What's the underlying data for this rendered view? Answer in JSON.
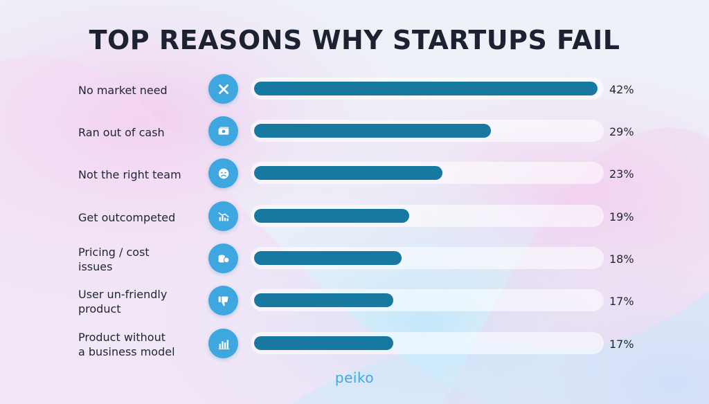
{
  "chart_data": {
    "type": "bar",
    "orientation": "horizontal",
    "title": "TOP REASONS WHY STARTUPS FAIL",
    "categories": [
      "No market need",
      "Ran out of cash",
      "Not the right team",
      "Get outcompeted",
      "Pricing / cost\nissues",
      "User un-friendly\nproduct",
      "Product without\na business model"
    ],
    "values": [
      42,
      29,
      23,
      19,
      18,
      17,
      17
    ],
    "value_labels": [
      "42%",
      "29%",
      "23%",
      "19%",
      "18%",
      "17%",
      "17%"
    ],
    "icons": [
      "close-icon",
      "cash-icon",
      "sad-face-icon",
      "declining-chart-icon",
      "coins-icon",
      "thumbs-down-icon",
      "bar-chart-icon"
    ],
    "xlim": [
      0,
      42
    ],
    "grid": false,
    "legend": "none"
  },
  "brand": {
    "logo_text": "peiko"
  },
  "colors": {
    "bar": "#17799f",
    "icon_bg": "#3fa7df",
    "title": "#1d2233",
    "text": "#1f2433"
  }
}
